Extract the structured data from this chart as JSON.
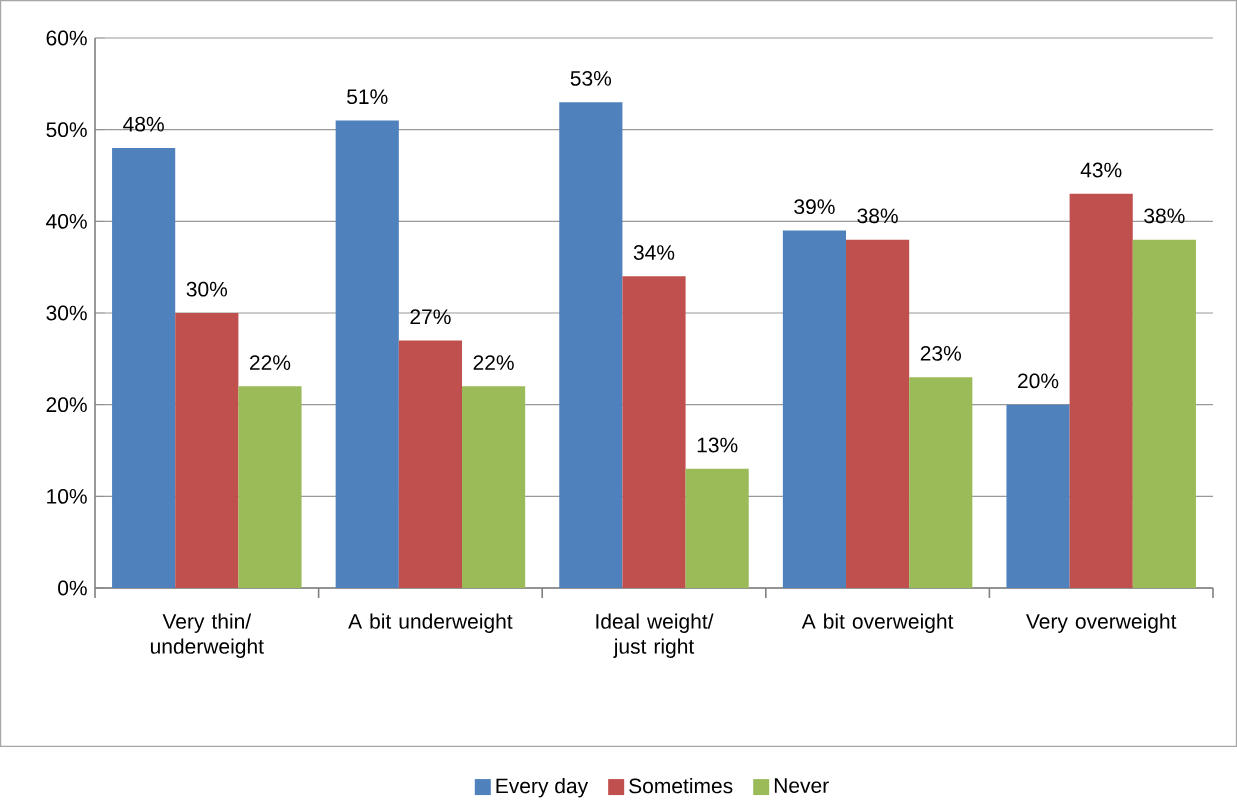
{
  "chart_data": {
    "type": "bar",
    "categories": [
      "Very thin/ underweight",
      "A bit underweight",
      "Ideal weight/ just right",
      "A bit overweight",
      "Very overweight"
    ],
    "series": [
      {
        "name": "Every day",
        "color": "#4f81bd",
        "values": [
          48,
          51,
          53,
          39,
          20
        ],
        "value_labels": [
          "48%",
          "51%",
          "53%",
          "39%",
          "20%"
        ]
      },
      {
        "name": "Sometimes",
        "color": "#c0504d",
        "values": [
          30,
          27,
          34,
          38,
          43
        ],
        "value_labels": [
          "30%",
          "27%",
          "34%",
          "38%",
          "43%"
        ]
      },
      {
        "name": "Never",
        "color": "#9bbb59",
        "values": [
          22,
          22,
          13,
          23,
          38
        ],
        "value_labels": [
          "22%",
          "22%",
          "13%",
          "23%",
          "38%"
        ]
      }
    ],
    "ylim": [
      0,
      60
    ],
    "yticks": [
      {
        "value": 0,
        "label": "0%"
      },
      {
        "value": 10,
        "label": "10%"
      },
      {
        "value": 20,
        "label": "20%"
      },
      {
        "value": 30,
        "label": "30%"
      },
      {
        "value": 40,
        "label": "40%"
      },
      {
        "value": 50,
        "label": "50%"
      },
      {
        "value": 60,
        "label": "60%"
      }
    ],
    "grid": "y",
    "legend": "bottom"
  }
}
